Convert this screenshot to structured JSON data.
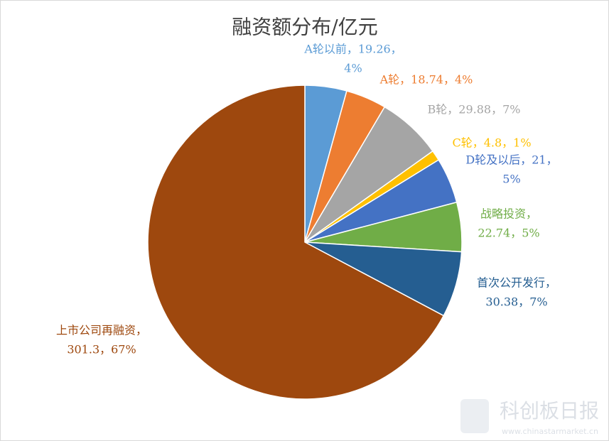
{
  "chart_data": {
    "type": "pie",
    "title": "融资额分布/亿元",
    "values": [
      19.26,
      18.74,
      29.88,
      4.8,
      21,
      22.74,
      30.38,
      301.3
    ],
    "value_labels": [
      [
        "A轮以前，19.26，",
        "4%"
      ],
      [
        "A轮，18.74，4%"
      ],
      [
        "B轮，29.88，7%"
      ],
      [
        "C轮，4.8，1%"
      ],
      [
        "D轮及以后，21，",
        "5%"
      ],
      [
        "战略投资，",
        "22.74，5%"
      ],
      [
        "首次公开发行，",
        "30.38，7%"
      ],
      [
        "上市公司再融资，",
        "301.3，67%"
      ]
    ],
    "colors": [
      "#5b9bd5",
      "#ed7d31",
      "#a5a5a5",
      "#ffc000",
      "#4472c4",
      "#70ad47",
      "#255e91",
      "#9e480e"
    ]
  },
  "watermark": {
    "name": "科创板日报",
    "url": "www.chinastarmarket.cn"
  }
}
